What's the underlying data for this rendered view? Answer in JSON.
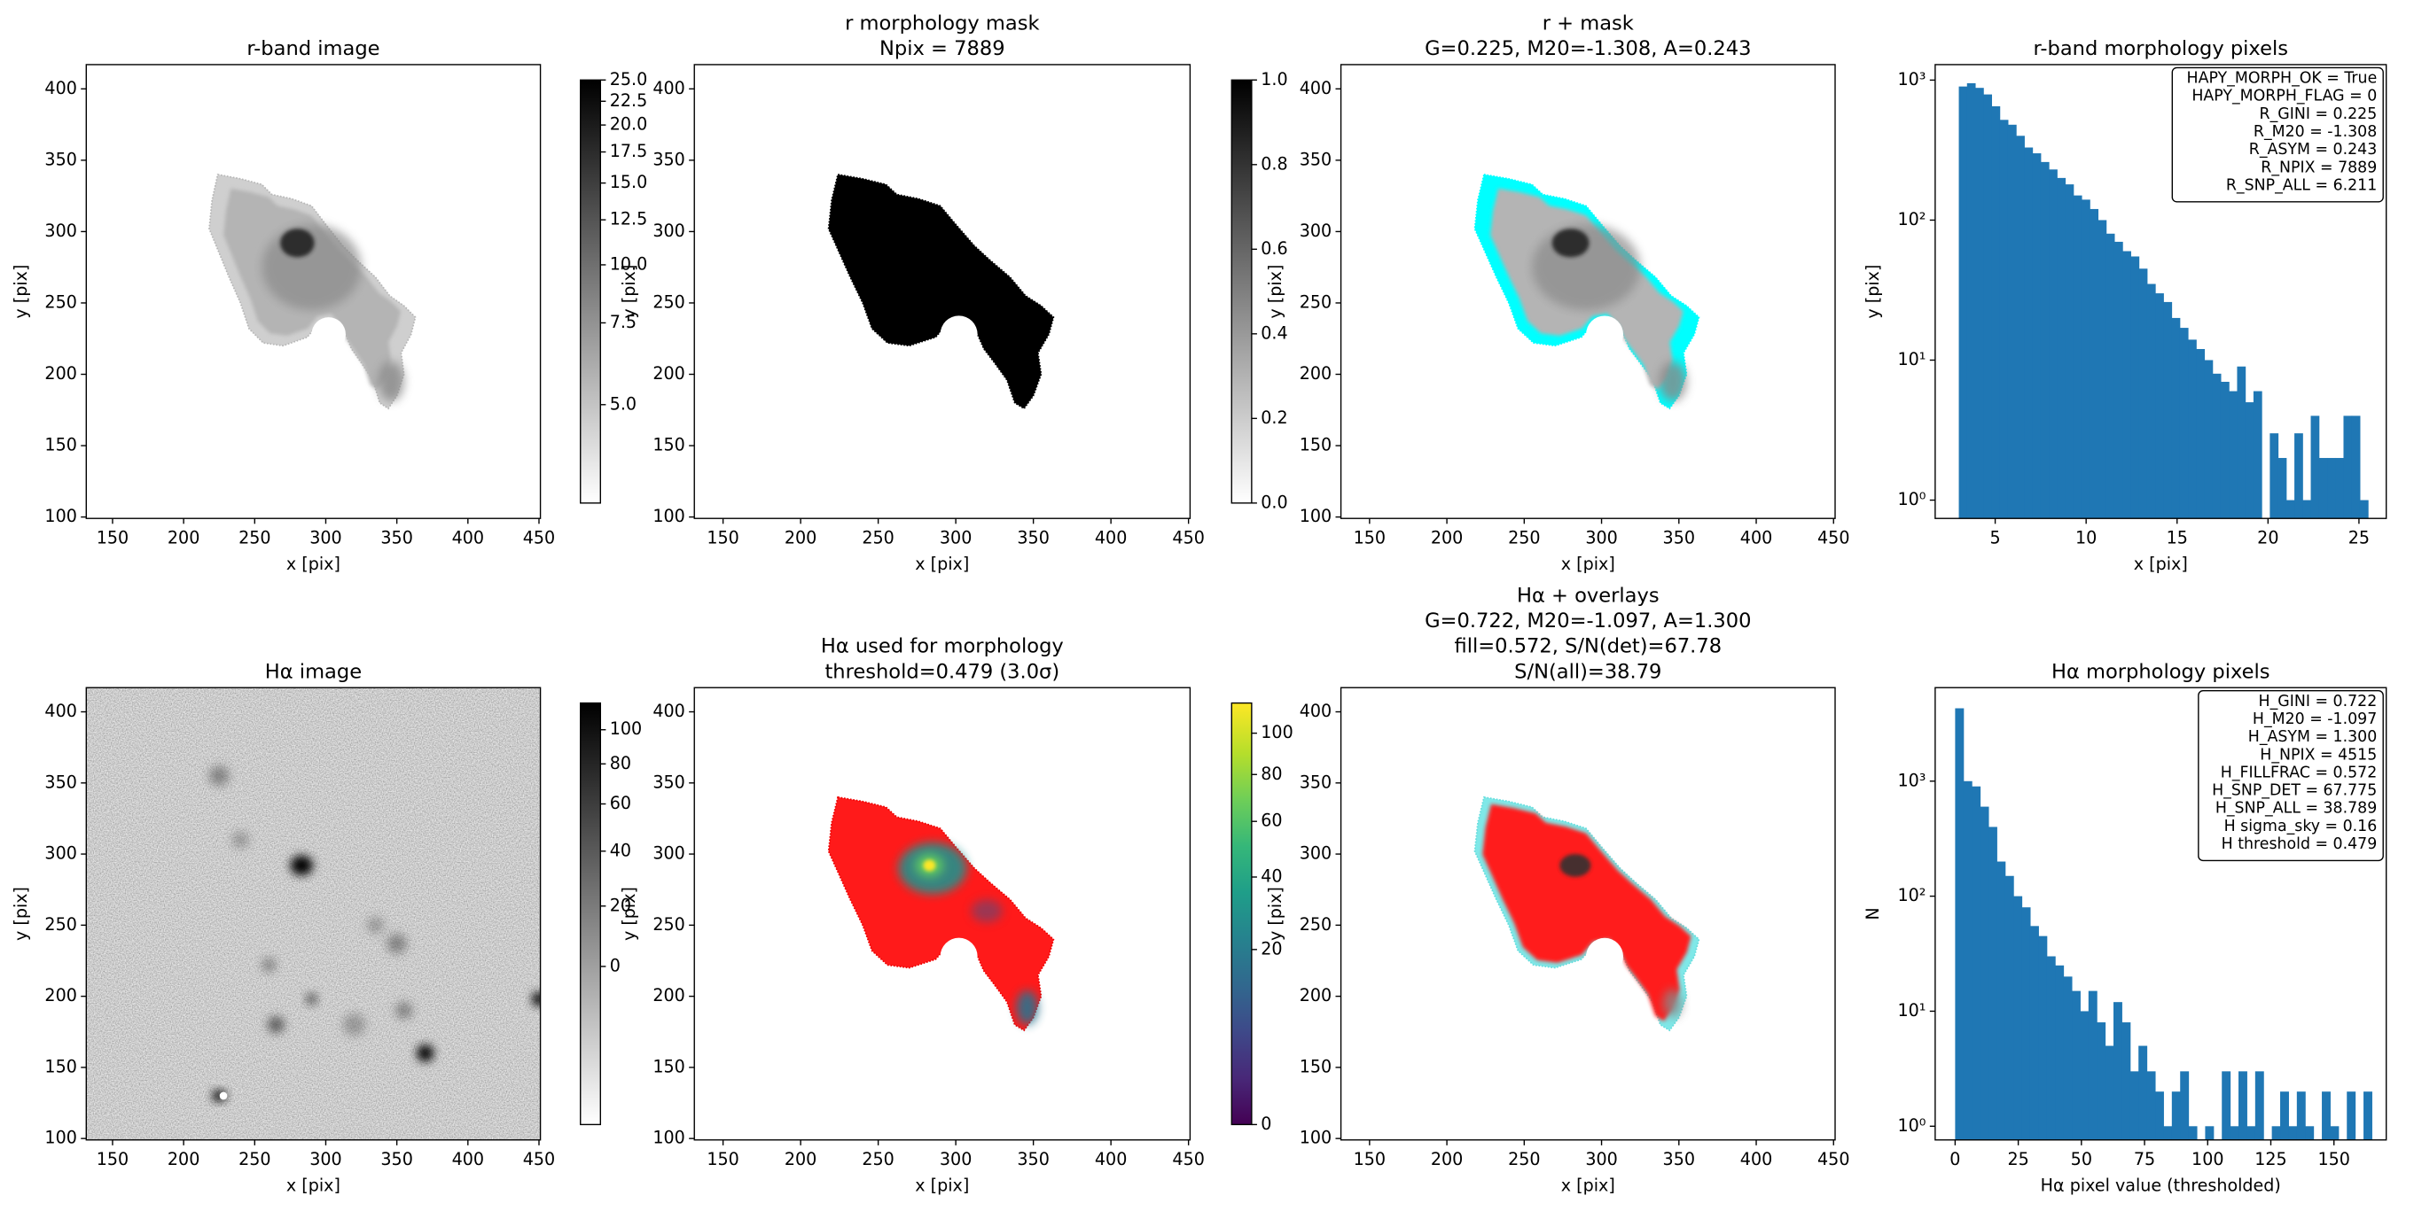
{
  "chart_data": [
    {
      "type": "image",
      "title": [
        "r-band image"
      ],
      "xlabel": "x [pix]",
      "ylabel": "y [pix]",
      "xlim": [
        131.5,
        451
      ],
      "ylim": [
        99,
        417
      ],
      "xticks": [
        150,
        200,
        250,
        300,
        350,
        400,
        450
      ],
      "yticks": [
        100,
        150,
        200,
        250,
        300,
        350,
        400
      ],
      "colorbar": {
        "cmap": "gray_r",
        "scale": "log",
        "lim": [
          3.07,
          25
        ],
        "ticks": [
          {
            "value": 5,
            "label": "5.0"
          },
          {
            "value": 7.5,
            "label": "7.5"
          },
          {
            "value": 10,
            "label": "10.0"
          },
          {
            "value": 12.5,
            "label": "12.5"
          },
          {
            "value": 15,
            "label": "15.0"
          },
          {
            "value": 17.5,
            "label": "17.5"
          },
          {
            "value": 20,
            "label": "20.0"
          },
          {
            "value": 22.5,
            "label": "22.5"
          },
          {
            "value": 25,
            "label": "25.0"
          }
        ]
      }
    },
    {
      "type": "image",
      "title": [
        "r morphology mask",
        "Npix = 7889"
      ],
      "xlabel": "x [pix]",
      "ylabel": "y [pix]",
      "xlim": [
        131.5,
        451
      ],
      "ylim": [
        99,
        417
      ],
      "xticks": [
        150,
        200,
        250,
        300,
        350,
        400,
        450
      ],
      "yticks": [
        100,
        150,
        200,
        250,
        300,
        350,
        400
      ],
      "colorbar": {
        "cmap": "gray_r",
        "scale": "linear",
        "lim": [
          0,
          1
        ],
        "ticks": [
          {
            "value": 0,
            "label": "0.0"
          },
          0.2,
          0.4,
          0.6,
          0.8,
          {
            "value": 1,
            "label": "1.0"
          }
        ]
      }
    },
    {
      "type": "image",
      "title": [
        "r + mask",
        "G=0.225, M20=-1.308, A=0.243"
      ],
      "xlabel": "x [pix]",
      "ylabel": "y [pix]",
      "xlim": [
        131.5,
        451
      ],
      "ylim": [
        99,
        417
      ],
      "xticks": [
        150,
        200,
        250,
        300,
        350,
        400,
        450
      ],
      "yticks": [
        100,
        150,
        200,
        250,
        300,
        350,
        400
      ]
    },
    {
      "type": "histogram",
      "title": [
        "r-band morphology pixels"
      ],
      "xlabel": "x [pix]",
      "ylabel": "y [pix]",
      "color": "#1f77b4",
      "ylog": true,
      "xlim": [
        1.7,
        26.5
      ],
      "ylim": [
        0.74,
        1290
      ],
      "xticks": [
        5,
        10,
        15,
        20,
        25
      ],
      "yticks": [
        {
          "value": 1,
          "label": "10⁰"
        },
        {
          "value": 10,
          "label": "10¹"
        },
        {
          "value": 100,
          "label": "10²"
        },
        {
          "value": 1000,
          "label": "10³"
        }
      ],
      "bins": [
        3,
        3.45,
        3.9,
        4.35,
        4.8,
        5.25,
        5.7,
        6.15,
        6.6,
        7.05,
        7.5,
        7.95,
        8.4,
        8.85,
        9.3,
        9.75,
        10.2,
        10.65,
        11.1,
        11.55,
        12,
        12.45,
        12.9,
        13.35,
        13.8,
        14.25,
        14.7,
        15.15,
        15.6,
        16.05,
        16.5,
        16.95,
        17.4,
        17.85,
        18.3,
        18.75,
        19.2,
        19.65,
        20.1,
        20.55,
        21,
        21.45,
        21.9,
        22.35,
        22.8,
        23.25,
        23.7,
        24.15,
        24.6,
        25.05,
        25.5
      ],
      "counts": [
        900,
        950,
        880,
        790,
        650,
        520,
        480,
        400,
        330,
        300,
        260,
        230,
        200,
        180,
        150,
        140,
        120,
        100,
        80,
        70,
        60,
        55,
        45,
        35,
        30,
        26,
        20,
        17,
        14,
        12,
        10,
        8,
        7,
        6,
        9,
        5,
        6,
        0,
        3,
        2,
        1,
        3,
        1,
        4,
        2,
        2,
        2,
        4,
        4,
        1
      ],
      "annotations": [
        "HAPY_MORPH_OK = True",
        "HAPY_MORPH_FLAG = 0",
        "R_GINI = 0.225",
        "R_M20 = -1.308",
        "R_ASYM = 0.243",
        "R_NPIX = 7889",
        "R_SNP_ALL = 6.211"
      ]
    },
    {
      "type": "image",
      "title": [
        "Hα image"
      ],
      "xlabel": "x [pix]",
      "ylabel": "y [pix]",
      "xlim": [
        131.5,
        451
      ],
      "ylim": [
        99,
        417
      ],
      "xticks": [
        150,
        200,
        250,
        300,
        350,
        400,
        450
      ],
      "yticks": [
        100,
        150,
        200,
        250,
        300,
        350,
        400
      ],
      "colorbar": {
        "cmap": "gray_r",
        "scale": "asinh",
        "lim": [
          -58,
          118
        ],
        "ticks": [
          0,
          20,
          40,
          60,
          80,
          100
        ]
      }
    },
    {
      "type": "image",
      "title": [
        "Hα used for morphology",
        "threshold=0.479 (3.0σ)"
      ],
      "xlabel": "x [pix]",
      "ylabel": "y [pix]",
      "xlim": [
        131.5,
        451
      ],
      "ylim": [
        99,
        417
      ],
      "xticks": [
        150,
        200,
        250,
        300,
        350,
        400,
        450
      ],
      "yticks": [
        100,
        150,
        200,
        250,
        300,
        350,
        400
      ],
      "colorbar": {
        "cmap": "viridis",
        "scale": "sqrt",
        "lim": [
          0,
          116
        ],
        "ticks": [
          0,
          20,
          40,
          60,
          80,
          100
        ]
      }
    },
    {
      "type": "image",
      "title": [
        "Hα + overlays",
        "G=0.722, M20=-1.097, A=1.300",
        "fill=0.572, S/N(det)=67.78",
        "S/N(all)=38.79"
      ],
      "xlabel": "x [pix]",
      "ylabel": "y [pix]",
      "xlim": [
        131.5,
        451
      ],
      "ylim": [
        99,
        417
      ],
      "xticks": [
        150,
        200,
        250,
        300,
        350,
        400,
        450
      ],
      "yticks": [
        100,
        150,
        200,
        250,
        300,
        350,
        400
      ]
    },
    {
      "type": "histogram",
      "title": [
        "Hα morphology pixels"
      ],
      "xlabel": "Hα pixel value (thresholded)",
      "ylabel": "N",
      "color": "#1f77b4",
      "ylog": true,
      "xlim": [
        -7.9,
        170.7
      ],
      "ylim": [
        0.76,
        6500
      ],
      "xticks": [
        0,
        25,
        50,
        75,
        100,
        125,
        150
      ],
      "yticks": [
        {
          "value": 1,
          "label": "10⁰"
        },
        {
          "value": 10,
          "label": "10¹"
        },
        {
          "value": 100,
          "label": "10²"
        },
        {
          "value": 1000,
          "label": "10³"
        }
      ],
      "bins": [
        0,
        3.3,
        6.6,
        9.9,
        13.2,
        16.5,
        19.8,
        23.1,
        26.4,
        29.7,
        33,
        36.3,
        39.6,
        42.9,
        46.2,
        49.5,
        52.8,
        56.1,
        59.4,
        62.7,
        66,
        69.3,
        72.6,
        75.9,
        79.2,
        82.5,
        85.8,
        89.1,
        92.4,
        95.7,
        99,
        102.3,
        105.6,
        108.9,
        112.2,
        115.5,
        118.8,
        122.1,
        125.4,
        128.7,
        132,
        135.3,
        138.6,
        141.9,
        145.2,
        148.5,
        151.8,
        155.1,
        158.4,
        161.7,
        165
      ],
      "counts": [
        4300,
        1000,
        900,
        600,
        400,
        200,
        150,
        100,
        80,
        55,
        45,
        30,
        25,
        20,
        15,
        10,
        15,
        8,
        5,
        12,
        8,
        3,
        5,
        3,
        2,
        1,
        2,
        3,
        1,
        0,
        1,
        0,
        3,
        1,
        3,
        1,
        3,
        0,
        1,
        2,
        1,
        2,
        1,
        0,
        2,
        1,
        0,
        2,
        0,
        2
      ],
      "annotations": [
        "H_GINI = 0.722",
        "H_M20 = -1.097",
        "H_ASYM = 1.300",
        "H_NPIX = 4515",
        "H_FILLFRAC = 0.572",
        "H_SNP_DET = 67.775",
        "H_SNP_ALL = 38.789",
        "H sigma_sky = 0.16",
        "H threshold = 0.479"
      ]
    }
  ]
}
